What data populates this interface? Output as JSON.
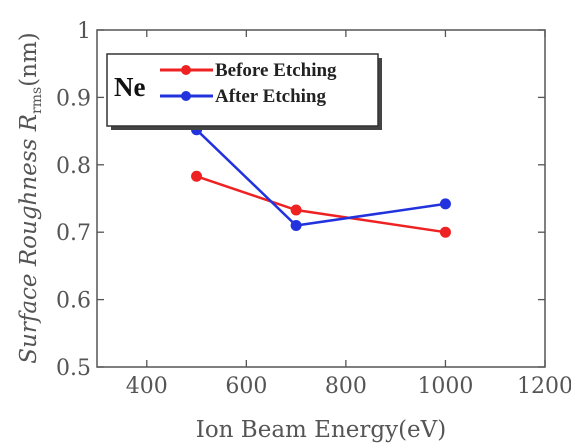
{
  "chart_data": {
    "type": "line",
    "xlabel": "Ion Beam Energy(eV)",
    "ylabel": "Surface Roughness R",
    "ylabel_sub": "rms",
    "ylabel_unit": "(nm)",
    "xlim": [
      300,
      1200
    ],
    "ylim": [
      0.5,
      1.0
    ],
    "xticks": [
      "400",
      "600",
      "800",
      "1000",
      "1200"
    ],
    "yticks": [
      "0.5",
      "0.6",
      "0.7",
      "0.8",
      "0.9",
      "1"
    ],
    "annotation": "Ne",
    "legend_position": "top-left",
    "series": [
      {
        "name": "Before Etching",
        "color": "#ee2222",
        "x": [
          500,
          700,
          1000
        ],
        "y": [
          0.783,
          0.733,
          0.7
        ]
      },
      {
        "name": "After Etching",
        "color": "#2233dd",
        "x": [
          500,
          700,
          1000
        ],
        "y": [
          0.852,
          0.71,
          0.742
        ]
      }
    ]
  }
}
